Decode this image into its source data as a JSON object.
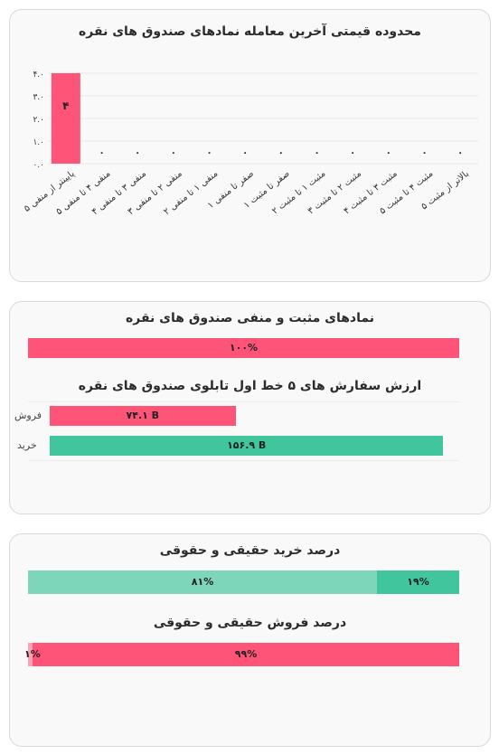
{
  "colors": {
    "negative": "#fe5478",
    "positive": "#40c59c",
    "positive_light": "#7dd5ba"
  },
  "chart_data": [
    {
      "type": "bar",
      "title": "محدوده قیمتی آخرین معامله نمادهای صندوق های نقره",
      "categories": [
        "پایینتر از منفی ۵",
        "منفی ۴ تا منفی ۵",
        "منفی ۳ تا منفی ۴",
        "منفی ۲ تا منفی ۳",
        "منفی ۱ تا منفی ۲",
        "صفر تا منفی ۱",
        "صفر تا مثبت ۱",
        "مثبت ۱ تا مثبت ۲",
        "مثبت ۲ تا مثبت ۳",
        "مثبت ۳ تا مثبت ۴",
        "مثبت ۴ تا مثبت ۵",
        "بالاتر از مثبت ۵"
      ],
      "values": [
        4,
        0,
        0,
        0,
        0,
        0,
        0,
        0,
        0,
        0,
        0,
        0
      ],
      "value_labels": [
        "۴",
        "۰",
        "۰",
        "۰",
        "۰",
        "۰",
        "۰",
        "۰",
        "۰",
        "۰",
        "۰",
        "۰"
      ],
      "y_ticks": [
        "۰.۰",
        "۱.۰",
        "۲.۰",
        "۳.۰",
        "۴.۰"
      ],
      "ylim": [
        0,
        4
      ]
    },
    {
      "type": "bar",
      "title": "نمادهای مثبت و منفی صندوق های نقره",
      "series": [
        {
          "value": 100,
          "label": "۱۰۰%"
        }
      ]
    },
    {
      "type": "bar",
      "title": "ارزش سفارش های ۵ خط اول تابلوی صندوق های نقره",
      "categories": [
        "فروش",
        "خرید"
      ],
      "values": [
        74.1,
        156.9
      ],
      "value_labels": [
        "۷۴.۱ B",
        "۱۵۶.۹ B"
      ],
      "xlim": [
        0,
        160
      ]
    },
    {
      "type": "bar",
      "title": "درصد خرید حقیقی و حقوقی",
      "values": [
        81,
        19
      ],
      "value_labels": [
        "۸۱%",
        "۱۹%"
      ]
    },
    {
      "type": "bar",
      "title": "درصد فروش حقیقی و حقوقی",
      "values": [
        1,
        99
      ],
      "value_labels": [
        "۱%",
        "۹۹%"
      ]
    }
  ]
}
